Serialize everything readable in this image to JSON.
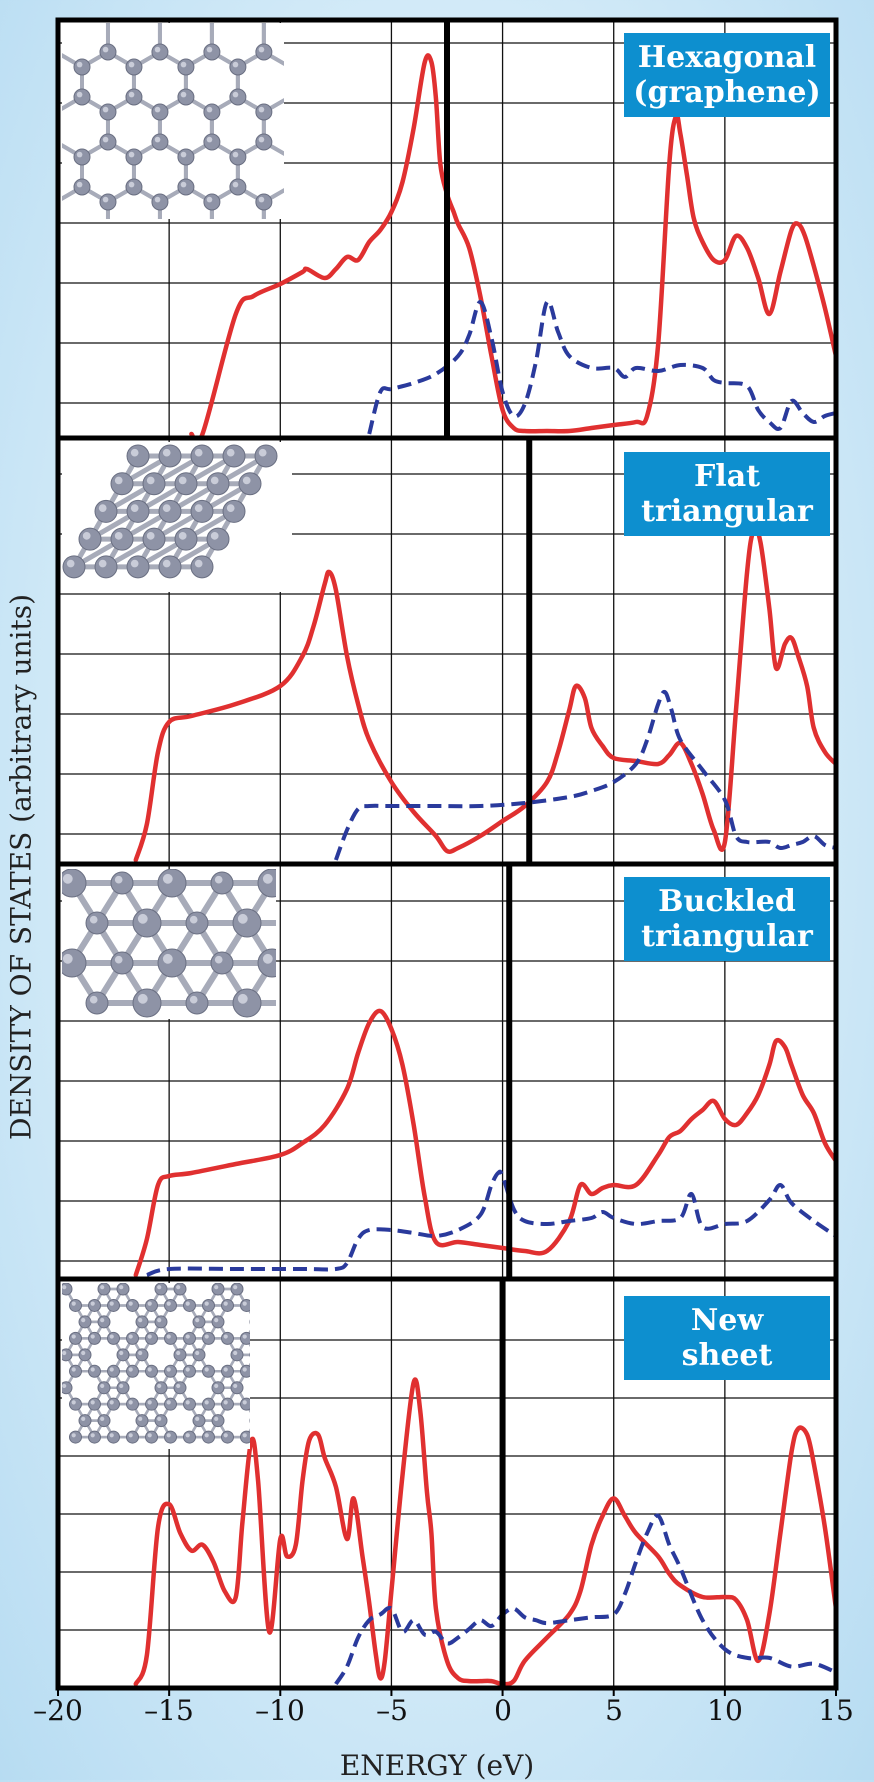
{
  "chart_data": {
    "type": "line",
    "xlabel": "ENERGY (eV)",
    "ylabel": "DENSITY OF STATES (arbitrary units)",
    "xlim": [
      -20,
      15
    ],
    "x_ticks": [
      "–20",
      "–15",
      "–10",
      "–5",
      "0",
      "5",
      "10",
      "15"
    ],
    "grid": true,
    "panels": [
      {
        "label": "Hexagonal (graphene)",
        "label_lines": [
          "Hexagonal",
          "(graphene)"
        ],
        "fermi_level": -2.5,
        "inset": "honeycomb-lattice-icon",
        "series": [
          {
            "color": "#e03030",
            "style": "solid",
            "x": [
              -14,
              -13.5,
              -12,
              -11.2,
              -10,
              -9,
              -8.8,
              -8,
              -7.5,
              -7,
              -6.5,
              -6,
              -5.5,
              -5,
              -4.5,
              -4,
              -3.5,
              -3.2,
              -3,
              -2.8,
              -2.5,
              -2.2,
              -2,
              -1.5,
              -1,
              -0.5,
              0,
              0.5,
              1,
              2,
              3,
              4,
              5,
              6,
              6.5,
              7,
              7.5,
              7.8,
              8,
              8.3,
              8.6,
              9,
              9.5,
              10,
              10.5,
              11,
              11.5,
              12,
              12.5,
              13,
              13.3,
              13.6,
              14,
              14.5,
              15
            ],
            "y": [
              0,
              0,
              2,
              2.3,
              2.5,
              2.7,
              2.75,
              2.6,
              2.75,
              2.95,
              2.9,
              3.2,
              3.4,
              3.7,
              4.2,
              5.1,
              6.2,
              6.2,
              5.6,
              4.5,
              4,
              3.7,
              3.5,
              3.1,
              2.3,
              1.3,
              0.4,
              0.1,
              0.05,
              0.05,
              0.05,
              0.1,
              0.15,
              0.2,
              0.3,
              1.5,
              4.5,
              5.3,
              5,
              4.3,
              3.6,
              3.2,
              2.9,
              2.9,
              3.3,
              3.1,
              2.6,
              2,
              2.7,
              3.4,
              3.5,
              3.3,
              2.8,
              2.1,
              1.3
            ]
          },
          {
            "color": "#2a3a9c",
            "style": "dashed",
            "x": [
              -6,
              -5.5,
              -5,
              -4,
              -3,
              -2,
              -1.5,
              -1,
              -0.5,
              0,
              0.5,
              1,
              1.5,
              2,
              2.5,
              3,
              4,
              5,
              5.5,
              6,
              7,
              8,
              9,
              9.5,
              10,
              11,
              11.5,
              12,
              12.5,
              13,
              13.5,
              14,
              14.5,
              15
            ],
            "y": [
              0,
              0.7,
              0.75,
              0.85,
              1,
              1.3,
              1.65,
              2.2,
              1.6,
              0.7,
              0.3,
              0.5,
              1.2,
              2.2,
              1.7,
              1.3,
              1.1,
              1.1,
              0.95,
              1.1,
              1.05,
              1.15,
              1.1,
              0.9,
              0.85,
              0.8,
              0.4,
              0.2,
              0.1,
              0.55,
              0.35,
              0.2,
              0.3,
              0.35
            ]
          }
        ]
      },
      {
        "label": "Flat triangular",
        "label_lines": [
          "Flat",
          "triangular"
        ],
        "fermi_level": 1.2,
        "inset": "triangular-lattice-icon",
        "series": [
          {
            "color": "#e03030",
            "style": "solid",
            "x": [
              -16.5,
              -16,
              -15.5,
              -15,
              -14,
              -12,
              -10,
              -9,
              -8.5,
              -8,
              -7.8,
              -7.5,
              -7,
              -6.5,
              -6,
              -5,
              -4,
              -3,
              -2.5,
              -2,
              -1,
              0,
              1,
              2,
              2.5,
              3,
              3.3,
              3.7,
              4,
              4.5,
              5,
              6,
              7,
              7.5,
              8,
              8.5,
              9,
              9.5,
              10,
              10.5,
              11,
              11.3,
              11.6,
              12,
              12.3,
              12.7,
              13,
              13.3,
              13.7,
              14,
              14.5,
              15
            ],
            "y": [
              0,
              0.6,
              1.8,
              2.3,
              2.4,
              2.6,
              2.9,
              3.4,
              3.9,
              4.6,
              4.8,
              4.5,
              3.4,
              2.6,
              2,
              1.3,
              0.8,
              0.4,
              0.15,
              0.2,
              0.4,
              0.65,
              0.9,
              1.3,
              1.8,
              2.5,
              2.9,
              2.7,
              2.2,
              1.9,
              1.7,
              1.65,
              1.6,
              1.75,
              1.95,
              1.6,
              1.1,
              0.5,
              0.3,
              2.5,
              4.8,
              5.5,
              5.3,
              4.2,
              3.2,
              3.6,
              3.7,
              3.4,
              2.9,
              2.2,
              1.8,
              1.6
            ]
          },
          {
            "color": "#2a3a9c",
            "style": "dashed",
            "x": [
              -7.5,
              -7,
              -6.5,
              -6,
              -5,
              -3,
              -1,
              1,
              3,
              4,
              5,
              6,
              6.5,
              7,
              7.3,
              7.6,
              8,
              9,
              10,
              10.5,
              11,
              11.5,
              12,
              12.5,
              13,
              13.5,
              14,
              14.5,
              15
            ],
            "y": [
              0,
              0.5,
              0.85,
              0.9,
              0.9,
              0.9,
              0.9,
              0.95,
              1.05,
              1.15,
              1.3,
              1.6,
              2,
              2.6,
              2.8,
              2.5,
              2,
              1.5,
              1,
              0.4,
              0.3,
              0.3,
              0.3,
              0.2,
              0.25,
              0.3,
              0.4,
              0.25,
              0.2
            ]
          }
        ]
      },
      {
        "label": "Buckled triangular",
        "label_lines": [
          "Buckled",
          "triangular"
        ],
        "fermi_level": 0.3,
        "inset": "buckled-lattice-icon",
        "series": [
          {
            "color": "#e03030",
            "style": "solid",
            "x": [
              -16.5,
              -16,
              -15.5,
              -15,
              -14,
              -12,
              -10,
              -9,
              -8,
              -7,
              -6.5,
              -6,
              -5.5,
              -5,
              -4.5,
              -4,
              -3.5,
              -3,
              -2,
              -1,
              0,
              1,
              2,
              3,
              3.5,
              4,
              4.5,
              5,
              6,
              7,
              7.5,
              8,
              8.5,
              9,
              9.5,
              10,
              10.5,
              11,
              11.5,
              12,
              12.3,
              12.7,
              13,
              13.5,
              14,
              14.5,
              15
            ],
            "y": [
              0,
              0.6,
              1.5,
              1.65,
              1.7,
              1.85,
              2,
              2.2,
              2.5,
              3.1,
              3.7,
              4.2,
              4.4,
              4.1,
              3.5,
              2.5,
              1.3,
              0.55,
              0.55,
              0.5,
              0.45,
              0.4,
              0.4,
              0.9,
              1.5,
              1.35,
              1.45,
              1.5,
              1.5,
              2,
              2.3,
              2.4,
              2.6,
              2.75,
              2.9,
              2.6,
              2.5,
              2.7,
              3,
              3.5,
              3.9,
              3.8,
              3.5,
              3,
              2.7,
              2.2,
              1.9
            ]
          },
          {
            "color": "#2a3a9c",
            "style": "dashed",
            "x": [
              -16,
              -15,
              -12,
              -9,
              -7.5,
              -7,
              -6.5,
              -6,
              -5,
              -4,
              -3,
              -2,
              -1,
              -0.5,
              -0.2,
              0,
              0.5,
              1,
              2,
              3,
              4,
              4.5,
              5,
              6,
              7,
              8,
              8.5,
              9,
              10,
              11,
              12,
              12.5,
              13,
              14,
              15
            ],
            "y": [
              0,
              0.1,
              0.1,
              0.1,
              0.1,
              0.2,
              0.6,
              0.75,
              0.75,
              0.7,
              0.65,
              0.75,
              1,
              1.5,
              1.7,
              1.65,
              1.1,
              0.9,
              0.85,
              0.9,
              0.95,
              1.05,
              0.95,
              0.85,
              0.9,
              0.95,
              1.35,
              0.8,
              0.85,
              0.9,
              1.25,
              1.5,
              1.2,
              0.9,
              0.65
            ]
          }
        ]
      },
      {
        "label": "New sheet",
        "label_lines": [
          "New",
          "sheet"
        ],
        "fermi_level": 0,
        "inset": "new-sheet-lattice-icon",
        "series": [
          {
            "color": "#e03030",
            "style": "solid",
            "x": [
              -16.5,
              -16,
              -15.5,
              -15,
              -14.5,
              -14,
              -13.5,
              -13,
              -12.5,
              -12,
              -11.7,
              -11.3,
              -11,
              -10.5,
              -10,
              -9.7,
              -9.3,
              -9,
              -8.7,
              -8.3,
              -8,
              -7.5,
              -7,
              -6.7,
              -6.3,
              -6,
              -5.7,
              -5.5,
              -5.3,
              -5,
              -4.5,
              -4,
              -3.7,
              -3.4,
              -3.2,
              -3,
              -2.5,
              -2,
              -1.5,
              -1,
              -0.5,
              0,
              0.5,
              1,
              2,
              3,
              3.5,
              4,
              4.5,
              5,
              5.5,
              6,
              7,
              7.5,
              8,
              9,
              10,
              10.5,
              11,
              11.5,
              12,
              12.5,
              13,
              13.3,
              13.7,
              14,
              14.5,
              15
            ],
            "y": [
              0,
              0.5,
              2.7,
              3.1,
              2.6,
              2.3,
              2.4,
              2.1,
              1.6,
              1.5,
              2.8,
              4.2,
              3.5,
              0.9,
              2.5,
              2.2,
              2.4,
              3.5,
              4.2,
              4.3,
              3.9,
              3.4,
              2.5,
              3.2,
              2.2,
              1.4,
              0.5,
              0.1,
              0.4,
              1.6,
              3.6,
              5.2,
              4.7,
              3.3,
              2.6,
              1.3,
              0.4,
              0.1,
              0.05,
              0.05,
              0.05,
              0,
              0.05,
              0.4,
              0.8,
              1.2,
              1.6,
              2.4,
              2.9,
              3.2,
              2.9,
              2.6,
              2.2,
              1.9,
              1.7,
              1.5,
              1.5,
              1.45,
              1.1,
              0.4,
              1.2,
              2.6,
              4,
              4.4,
              4.3,
              3.8,
              2.7,
              1.3
            ]
          },
          {
            "color": "#2a3a9c",
            "style": "dashed",
            "x": [
              -7.5,
              -7,
              -6.5,
              -6,
              -5.5,
              -5,
              -4.5,
              -4,
              -3.5,
              -3,
              -2.5,
              -2,
              -1.5,
              -1,
              -0.5,
              0,
              0.5,
              1,
              1.5,
              2,
              3,
              4,
              5,
              5.5,
              6,
              6.5,
              7,
              7.5,
              8,
              9,
              10,
              11,
              12,
              13,
              14,
              15
            ],
            "y": [
              0,
              0.3,
              0.8,
              1.1,
              1.2,
              1.3,
              0.9,
              1.1,
              0.85,
              0.9,
              0.7,
              0.8,
              0.95,
              1.1,
              1,
              1.2,
              1.3,
              1.15,
              1.1,
              1.05,
              1.1,
              1.15,
              1.2,
              1.55,
              2.1,
              2.6,
              2.9,
              2.4,
              2.0,
              1.1,
              0.6,
              0.45,
              0.45,
              0.3,
              0.35,
              0.2
            ]
          }
        ]
      }
    ]
  }
}
